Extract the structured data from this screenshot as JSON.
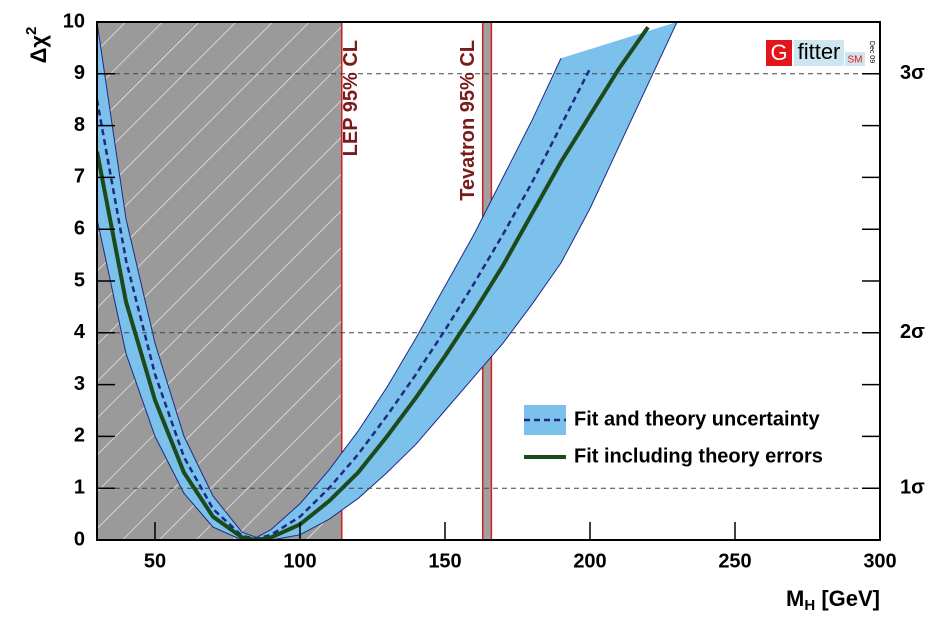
{
  "chart_data": {
    "type": "line",
    "x_label": {
      "main": "M",
      "sub": "H",
      "rest": " [GeV]"
    },
    "y_label": {
      "main": "Δχ",
      "sup": "2"
    },
    "xlim": [
      30,
      300
    ],
    "ylim": [
      0,
      10
    ],
    "xticks": [
      50,
      100,
      150,
      200,
      250,
      300
    ],
    "yticks": [
      0,
      1,
      2,
      3,
      4,
      5,
      6,
      7,
      8,
      9,
      10
    ],
    "x": [
      30,
      40,
      50,
      60,
      70,
      80,
      85,
      90,
      100,
      110,
      120,
      130,
      140,
      150,
      160,
      170,
      180,
      190,
      200,
      210,
      220,
      230
    ],
    "series": [
      {
        "name": "Fit and theory uncertainty",
        "color": "#7cc0ec",
        "line_color": "#1f2a80",
        "upper": [
          10,
          6.2,
          3.8,
          2.0,
          0.85,
          0.15,
          0.05,
          0.2,
          0.7,
          1.35,
          2.1,
          2.95,
          3.9,
          4.9,
          5.9,
          7.0,
          8.1,
          9.3,
          null,
          null,
          null,
          null
        ],
        "lower": [
          6.2,
          3.6,
          2.0,
          0.9,
          0.25,
          0.0,
          0.0,
          0.0,
          0.1,
          0.4,
          0.8,
          1.3,
          1.85,
          2.5,
          3.15,
          3.8,
          4.55,
          5.35,
          6.4,
          7.6,
          8.8,
          10
        ],
        "values": [
          8.5,
          5.4,
          3.2,
          1.6,
          0.6,
          0.08,
          0.02,
          0.1,
          0.45,
          1.0,
          1.65,
          2.4,
          3.2,
          4.05,
          4.95,
          5.9,
          6.9,
          8.0,
          9.1,
          null,
          null,
          null
        ]
      },
      {
        "name": "Fit including theory errors",
        "color": "#1d4a1d",
        "values": [
          7.5,
          4.6,
          2.7,
          1.3,
          0.45,
          0.05,
          0.0,
          0.05,
          0.3,
          0.75,
          1.3,
          2.0,
          2.75,
          3.55,
          4.4,
          5.3,
          6.3,
          7.3,
          8.2,
          9.1,
          9.9,
          null
        ]
      }
    ],
    "exclusions": [
      {
        "label": "LEP 95% CL",
        "from": 30,
        "to": 114.4
      },
      {
        "label": "Tevatron 95% CL",
        "from": 163,
        "to": 166
      }
    ],
    "sigma_lines": [
      {
        "value": 1,
        "label": "1σ"
      },
      {
        "value": 4,
        "label": "2σ"
      },
      {
        "value": 9,
        "label": "3σ"
      }
    ],
    "logo": {
      "g": "G",
      "name": "fitter",
      "sub": "SM",
      "date": "Dec 09"
    }
  }
}
